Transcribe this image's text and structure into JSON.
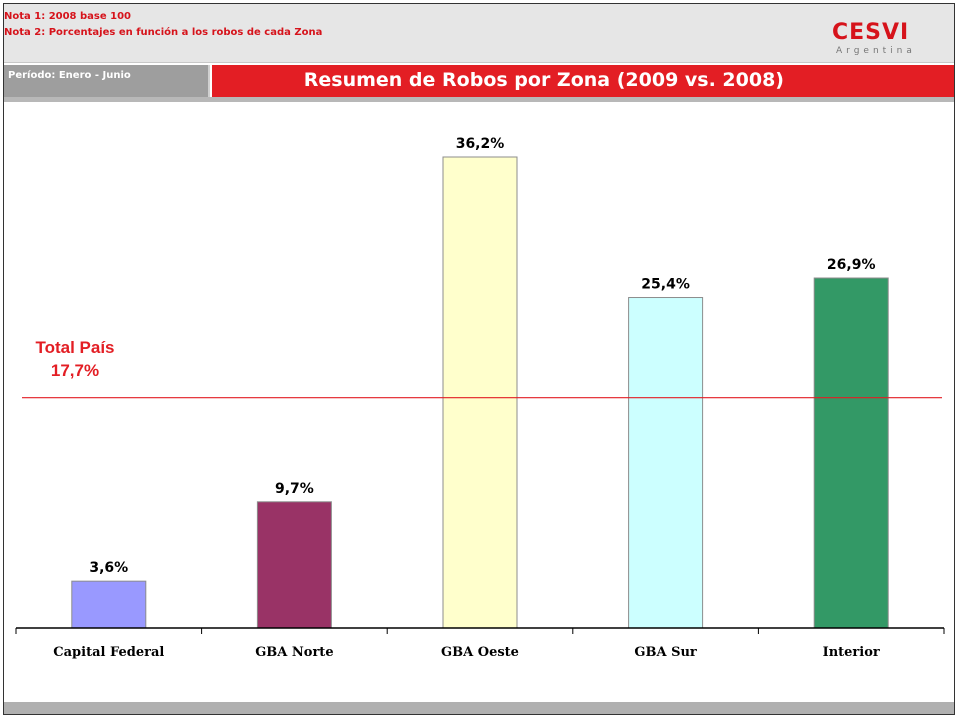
{
  "header": {
    "note1": "Nota 1: 2008 base 100",
    "note2": "Nota 2: Porcentajes en función a los robos de cada Zona",
    "logo_main": "CESVI",
    "logo_sub": "Argentina",
    "period": "Período: Enero - Junio",
    "title": "Resumen de Robos por Zona (2009 vs. 2008)"
  },
  "colors": {
    "accent_red": "#e31e24",
    "bar_colors": [
      "#9999ff",
      "#993366",
      "#ffffcc",
      "#ccffff",
      "#339966"
    ]
  },
  "chart_data": {
    "type": "bar",
    "title": "Resumen de Robos por Zona (2009 vs. 2008)",
    "categories": [
      "Capital Federal",
      "GBA Norte",
      "GBA Oeste",
      "GBA Sur",
      "Interior"
    ],
    "values": [
      3.6,
      9.7,
      36.2,
      25.4,
      26.9
    ],
    "value_labels": [
      "3,6%",
      "9,7%",
      "36,2%",
      "25,4%",
      "26,9%"
    ],
    "xlabel": "",
    "ylabel": "",
    "ylim": [
      0,
      40
    ],
    "grid": false,
    "legend": "none",
    "reference_line": {
      "value": 17.7,
      "label_line1": "Total País",
      "label_line2": "17,7%",
      "color": "#e31e24"
    }
  }
}
